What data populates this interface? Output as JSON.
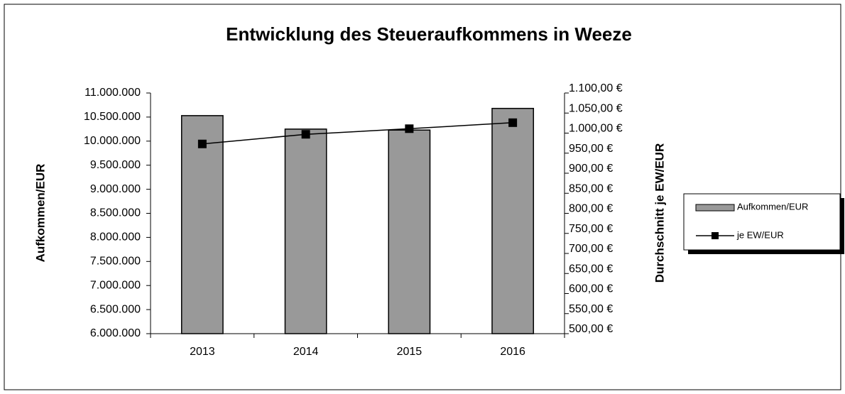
{
  "chart_data": {
    "type": "bar_line",
    "title": "Entwicklung des Steueraufkommens  in Weeze",
    "y_label": "Aufkommen/EUR",
    "y2_label": "Durchschnitt je EW/EUR",
    "categories": [
      "2013",
      "2014",
      "2015",
      "2016"
    ],
    "series": [
      {
        "name": "Aufkommen/EUR",
        "type": "bar",
        "color": "#999999",
        "values": [
          10530000,
          10250000,
          10230000,
          10680000
        ]
      },
      {
        "name": "je EW/EUR",
        "type": "line",
        "axis": "y2",
        "color": "#000000",
        "values": [
          973,
          997,
          1011,
          1026
        ]
      }
    ],
    "ylim": [
      6000000,
      11000000
    ],
    "yticks": [
      {
        "value": 6000000,
        "label": "6.000.000"
      },
      {
        "value": 6500000,
        "label": "6.500.000"
      },
      {
        "value": 7000000,
        "label": "7.000.000"
      },
      {
        "value": 7500000,
        "label": "7.500.000"
      },
      {
        "value": 8000000,
        "label": "8.000.000"
      },
      {
        "value": 8500000,
        "label": "8.500.000"
      },
      {
        "value": 9000000,
        "label": "9.000.000"
      },
      {
        "value": 9500000,
        "label": "9.500.000"
      },
      {
        "value": 10000000,
        "label": "10.000.000"
      },
      {
        "value": 10500000,
        "label": "10.500.000"
      },
      {
        "value": 11000000,
        "label": "11.000.000"
      }
    ],
    "y2lim": [
      500,
      1100
    ],
    "y2ticks": [
      {
        "value": 500,
        "label": "500,00 €"
      },
      {
        "value": 550,
        "label": "550,00 €"
      },
      {
        "value": 600,
        "label": "600,00 €"
      },
      {
        "value": 650,
        "label": "650,00 €"
      },
      {
        "value": 700,
        "label": "700,00 €"
      },
      {
        "value": 750,
        "label": "750,00 €"
      },
      {
        "value": 800,
        "label": "800,00 €"
      },
      {
        "value": 850,
        "label": "850,00 €"
      },
      {
        "value": 900,
        "label": "900,00 €"
      },
      {
        "value": 950,
        "label": "950,00 €"
      },
      {
        "value": 1000,
        "label": "1.000,00 €"
      },
      {
        "value": 1050,
        "label": "1.050,00 €"
      },
      {
        "value": 1100,
        "label": "1.100,00 €"
      }
    ],
    "legend": "right"
  }
}
